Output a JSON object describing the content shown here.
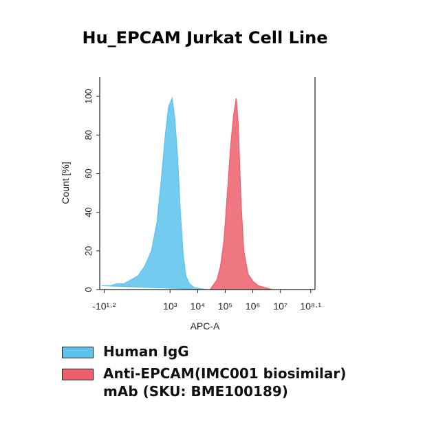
{
  "chart_data": {
    "type": "area",
    "title": "Hu_EPCAM Jurkat Cell Line",
    "x_label": "APC-A",
    "y_label": "Count [%]",
    "x_scale": "biexponential",
    "xlim": [
      -26,
      180000000
    ],
    "ylim": [
      0,
      110
    ],
    "xticks": [
      {
        "value": -15.85,
        "label": "-10¹·²"
      },
      {
        "value": 1000,
        "label": "10³"
      },
      {
        "value": 10000,
        "label": "10⁴"
      },
      {
        "value": 100000,
        "label": "10⁵"
      },
      {
        "value": 1000000,
        "label": "10⁶"
      },
      {
        "value": 10000000,
        "label": "10⁷"
      },
      {
        "value": 125892541,
        "label": "10⁸·¹"
      }
    ],
    "yticks": [
      0,
      20,
      40,
      60,
      80,
      100
    ],
    "series": [
      {
        "name": "Human IgG",
        "color": "#5bc3ec",
        "x": [
          -21,
          -5.4,
          5.1,
          17.3,
          35.3,
          66,
          119,
          211,
          335,
          501,
          668,
          891,
          1189,
          1496,
          1884,
          2371,
          2985,
          3758,
          5012,
          7499,
          11885,
          21135
        ],
        "values": [
          2,
          2,
          3,
          3,
          5,
          7,
          12,
          20,
          35,
          60,
          80,
          95,
          99,
          88,
          68,
          40,
          18,
          7,
          3,
          1,
          0.5,
          0
        ]
      },
      {
        "name": "Anti-EPCAM(IMC001 biosimilar) mAb (SKU: BME100189)",
        "color": "#ec5f6b",
        "x": [
          28184,
          50119,
          66834,
          89125,
          118850,
          158489,
          199526,
          251189,
          298538,
          375837,
          473151,
          668344,
          1059254,
          1584893,
          2818383,
          5011872
        ],
        "values": [
          0,
          5,
          12,
          25,
          50,
          75,
          90,
          99,
          85,
          45,
          20,
          8,
          4,
          2,
          1,
          0
        ]
      }
    ]
  }
}
